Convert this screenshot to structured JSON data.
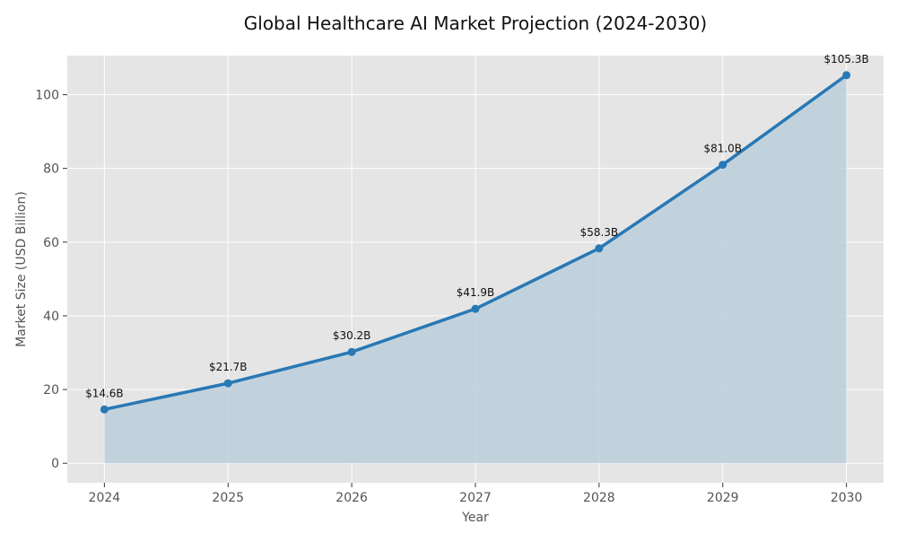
{
  "chart_data": {
    "type": "area",
    "title": "Global Healthcare AI Market Projection (2024-2030)",
    "xlabel": "Year",
    "ylabel": "Market Size (USD Billion)",
    "x": [
      2024,
      2025,
      2026,
      2027,
      2028,
      2029,
      2030
    ],
    "values": [
      14.6,
      21.7,
      30.2,
      41.9,
      58.3,
      81.0,
      105.3
    ],
    "data_labels": [
      "$14.6B",
      "$21.7B",
      "$30.2B",
      "$41.9B",
      "$58.3B",
      "$81.0B",
      "$105.3B"
    ],
    "xticks": [
      "2024",
      "2025",
      "2026",
      "2027",
      "2028",
      "2029",
      "2030"
    ],
    "yticks": [
      "0",
      "20",
      "40",
      "60",
      "80",
      "100"
    ],
    "xlim": [
      2023.7,
      2030.3
    ],
    "ylim": [
      -5.3,
      110.6
    ],
    "grid": true,
    "colors": {
      "line": "#2878b5",
      "fill": "#bccfdc",
      "background": "#e5e5e5",
      "grid": "#ffffff"
    }
  }
}
